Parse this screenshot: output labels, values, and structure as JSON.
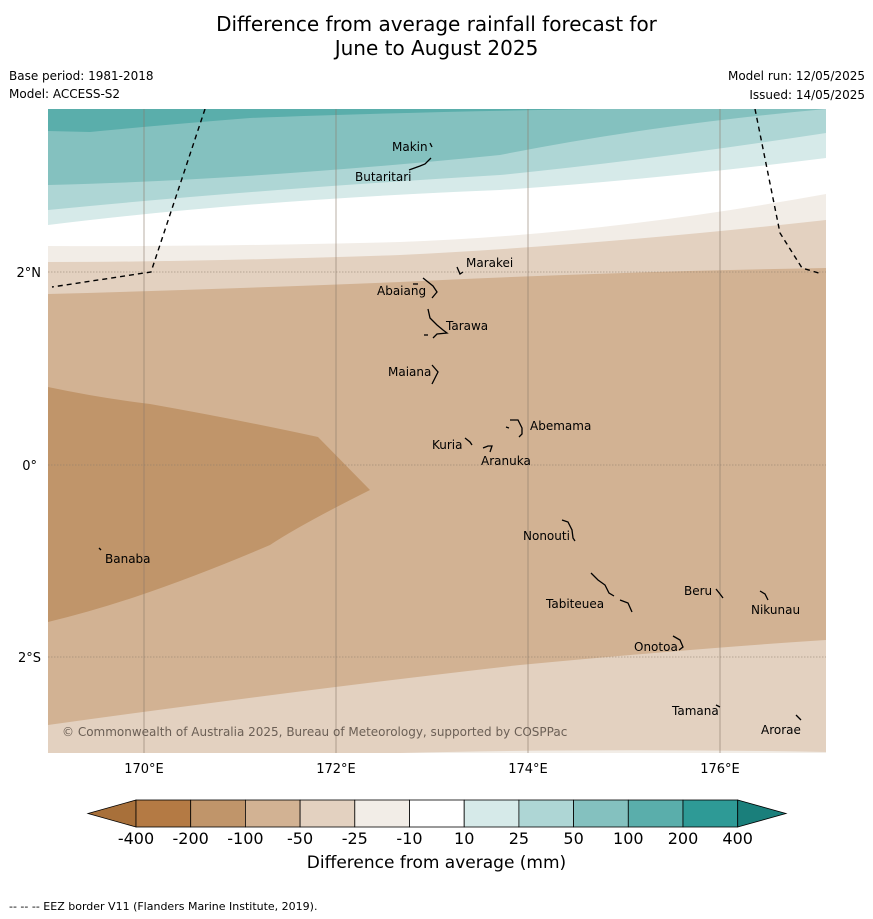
{
  "title_line1": "Difference from average rainfall forecast for",
  "title_line2": "June to August 2025",
  "base_period": "Base period: 1981-2018",
  "model": "Model: ACCESS-S2",
  "model_run": "Model run: 12/05/2025",
  "issued": "Issued: 14/05/2025",
  "copyright": "© Commonwealth of Australia 2025, Bureau of Meteorology, supported by COSPPac",
  "footnote": "--  --  -- EEZ border V11 (Flanders Marine Institute, 2019).",
  "lon_labels": [
    "170°E",
    "172°E",
    "174°E",
    "176°E"
  ],
  "lat_labels": [
    "2°N",
    "0°",
    "2°S"
  ],
  "islands": [
    {
      "name": "Makin"
    },
    {
      "name": "Butaritari"
    },
    {
      "name": "Marakei"
    },
    {
      "name": "Abaiang"
    },
    {
      "name": "Tarawa"
    },
    {
      "name": "Maiana"
    },
    {
      "name": "Abemama"
    },
    {
      "name": "Kuria"
    },
    {
      "name": "Aranuka"
    },
    {
      "name": "Banaba"
    },
    {
      "name": "Nonouti"
    },
    {
      "name": "Beru"
    },
    {
      "name": "Tabiteuea"
    },
    {
      "name": "Nikunau"
    },
    {
      "name": "Onotoa"
    },
    {
      "name": "Tamana"
    },
    {
      "name": "Arorae"
    }
  ],
  "colorbar": {
    "title": "Difference from average (mm)",
    "ticks": [
      "-400",
      "-200",
      "-100",
      "-50",
      "-25",
      "-10",
      "10",
      "25",
      "50",
      "100",
      "200",
      "400"
    ],
    "colors": [
      "#a8703a",
      "#c0956a",
      "#d2b293",
      "#e3d1c0",
      "#f2ede7",
      "#ffffff",
      "#d6eae9",
      "#aed6d5",
      "#84c1bf",
      "#5aaeab",
      "#2e9a96",
      "#1a7f7b"
    ]
  }
}
